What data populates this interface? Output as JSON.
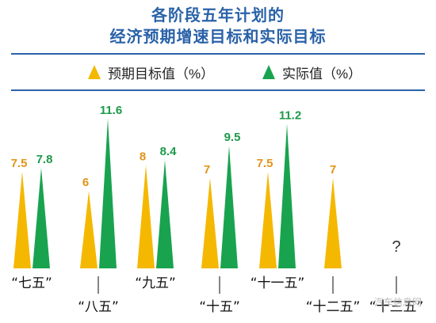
{
  "title_line1": "各阶段五年计划的",
  "title_line2": "经济预期增速目标和实际目标",
  "legend": {
    "expected": "预期目标值（%）",
    "actual": "实际值（%）"
  },
  "colors": {
    "title": "#2a62a8",
    "expected": "#f5b800",
    "actual": "#19a34f",
    "expected_label": "#e0941a",
    "actual_label": "#1d9a4a"
  },
  "watermark": "汽车信息网",
  "chart_data": {
    "type": "bar",
    "categories": [
      "“七五”",
      "“八五”",
      "“九五”",
      "“十五”",
      "“十一五”",
      "“十二五”",
      "“十三五”"
    ],
    "series": [
      {
        "name": "预期目标值（%）",
        "values": [
          7.5,
          6,
          8,
          7,
          7.5,
          7,
          null
        ]
      },
      {
        "name": "实际值（%）",
        "values": [
          7.8,
          11.6,
          8.4,
          9.5,
          11.2,
          null,
          null
        ]
      }
    ],
    "value_labels": {
      "expected": [
        "7.5",
        "6",
        "8",
        "7",
        "7.5",
        "7",
        ""
      ],
      "actual": [
        "7.8",
        "11.6",
        "8.4",
        "9.5",
        "11.2",
        "",
        ""
      ]
    },
    "unknown_marker": "?",
    "ylim": [
      0,
      12
    ],
    "grid": false,
    "legend_position": "top"
  }
}
